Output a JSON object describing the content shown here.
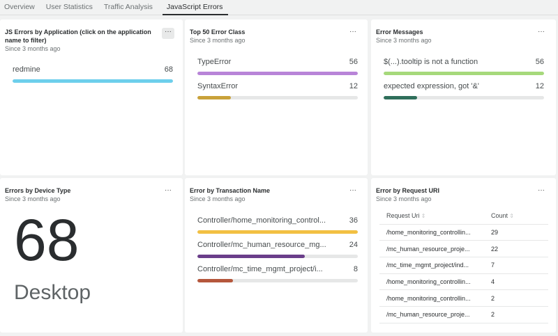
{
  "tabs": [
    "Overview",
    "User Statistics",
    "Traffic Analysis",
    "JavaScript Errors"
  ],
  "active_tab": "JavaScript Errors",
  "since": "Since 3 months ago",
  "more_label": "···",
  "cards": {
    "apps": {
      "title": "JS Errors by Application (click on the application name to filter)",
      "rows": [
        {
          "label": "redmine",
          "value": 68,
          "pct": 100,
          "color": "#6dcfec"
        }
      ]
    },
    "errclass": {
      "title": "Top 50 Error Class",
      "rows": [
        {
          "label": "TypeError",
          "value": 56,
          "pct": 100,
          "color": "#b884d8"
        },
        {
          "label": "SyntaxError",
          "value": 12,
          "pct": 21,
          "color": "#c9a23a"
        }
      ]
    },
    "messages": {
      "title": "Error Messages",
      "rows": [
        {
          "label": "$(...).tooltip is not a function",
          "value": 56,
          "pct": 100,
          "color": "#a6d97b"
        },
        {
          "label": "expected expression, got '&'",
          "value": 12,
          "pct": 21,
          "color": "#2f6f5b"
        }
      ]
    },
    "device": {
      "title": "Errors by Device Type",
      "value": "68",
      "label": "Desktop"
    },
    "transaction": {
      "title": "Error by Transaction Name",
      "rows": [
        {
          "label": "Controller/home_monitoring_control...",
          "value": 36,
          "pct": 100,
          "color": "#f2c043"
        },
        {
          "label": "Controller/mc_human_resource_mg...",
          "value": 24,
          "pct": 67,
          "color": "#6a3e8a"
        },
        {
          "label": "Controller/mc_time_mgmt_project/i...",
          "value": 8,
          "pct": 22,
          "color": "#b5573c"
        }
      ]
    },
    "uri": {
      "title": "Error by Request URI",
      "columns": [
        "Request Uri",
        "Count"
      ],
      "rows": [
        [
          "/home_monitoring_controllin...",
          "29"
        ],
        [
          "/mc_human_resource_proje...",
          "22"
        ],
        [
          "/mc_time_mgmt_project/ind...",
          "7"
        ],
        [
          "/home_monitoring_controllin...",
          "4"
        ],
        [
          "/home_monitoring_controllin...",
          "2"
        ],
        [
          "/mc_human_resource_proje...",
          "2"
        ]
      ]
    }
  }
}
